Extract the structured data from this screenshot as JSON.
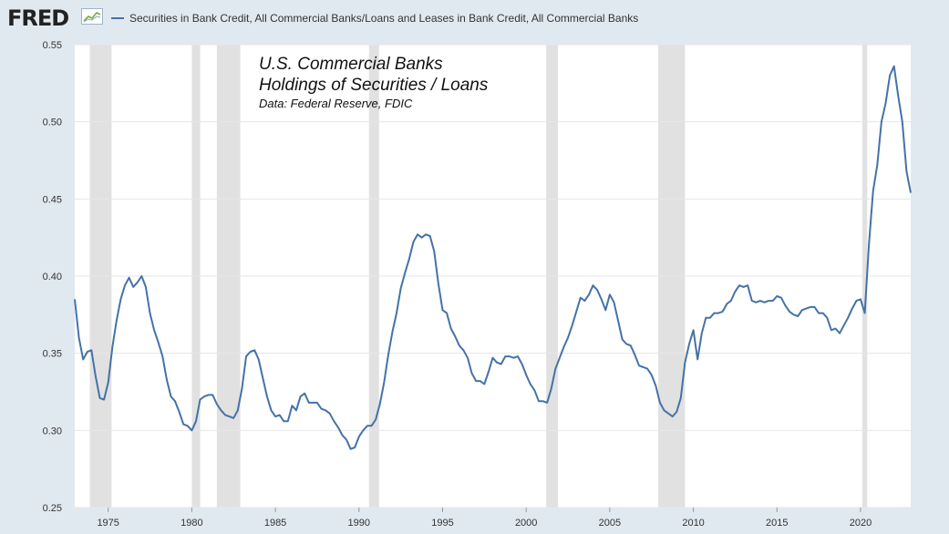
{
  "header": {
    "logo": "FRED",
    "logo_icon": "line-chart-icon"
  },
  "colors": {
    "background": "#e1e9f0",
    "plot_background": "#ffffff",
    "series": "#4572a7",
    "recession": "#e1e1e1",
    "grid": "#e6e6e6"
  },
  "chart_data": {
    "type": "line",
    "title": "",
    "xlabel": "",
    "ylabel": "",
    "grid": true,
    "legend_position": "top",
    "xlim": [
      1973.0,
      2023.0
    ],
    "ylim": [
      0.25,
      0.55
    ],
    "x_ticks": [
      1975,
      1980,
      1985,
      1990,
      1995,
      2000,
      2005,
      2010,
      2015,
      2020
    ],
    "x_tick_labels": [
      "1975",
      "1980",
      "1985",
      "1990",
      "1995",
      "2000",
      "2005",
      "2010",
      "2015",
      "2020"
    ],
    "y_ticks": [
      0.25,
      0.3,
      0.35,
      0.4,
      0.45,
      0.5,
      0.55
    ],
    "y_tick_labels": [
      "0.25",
      "0.30",
      "0.35",
      "0.40",
      "0.45",
      "0.50",
      "0.55"
    ],
    "annotation": {
      "line1": "U.S. Commercial Banks",
      "line2": "Holdings of Securities / Loans",
      "line3": "Data: Federal Reserve, FDIC"
    },
    "recessions": [
      [
        1973.9,
        1975.2
      ],
      [
        1980.0,
        1980.5
      ],
      [
        1981.5,
        1982.9
      ],
      [
        1990.6,
        1991.2
      ],
      [
        2001.2,
        2001.9
      ],
      [
        2007.9,
        2009.5
      ],
      [
        2020.1,
        2020.4
      ]
    ],
    "series": [
      {
        "name": "Securities in Bank Credit, All Commercial Banks/Loans and Leases in Bank Credit, All Commercial Banks",
        "x": [
          1973.0,
          1973.25,
          1973.5,
          1973.75,
          1974.0,
          1974.25,
          1974.5,
          1974.75,
          1975.0,
          1975.25,
          1975.5,
          1975.75,
          1976.0,
          1976.25,
          1976.5,
          1976.75,
          1977.0,
          1977.25,
          1977.5,
          1977.75,
          1978.0,
          1978.25,
          1978.5,
          1978.75,
          1979.0,
          1979.25,
          1979.5,
          1979.75,
          1980.0,
          1980.25,
          1980.5,
          1980.75,
          1981.0,
          1981.25,
          1981.5,
          1981.75,
          1982.0,
          1982.25,
          1982.5,
          1982.75,
          1983.0,
          1983.25,
          1983.5,
          1983.75,
          1984.0,
          1984.25,
          1984.5,
          1984.75,
          1985.0,
          1985.25,
          1985.5,
          1985.75,
          1986.0,
          1986.25,
          1986.5,
          1986.75,
          1987.0,
          1987.25,
          1987.5,
          1987.75,
          1988.0,
          1988.25,
          1988.5,
          1988.75,
          1989.0,
          1989.25,
          1989.5,
          1989.75,
          1990.0,
          1990.25,
          1990.5,
          1990.75,
          1991.0,
          1991.25,
          1991.5,
          1991.75,
          1992.0,
          1992.25,
          1992.5,
          1992.75,
          1993.0,
          1993.25,
          1993.5,
          1993.75,
          1994.0,
          1994.25,
          1994.5,
          1994.75,
          1995.0,
          1995.25,
          1995.5,
          1995.75,
          1996.0,
          1996.25,
          1996.5,
          1996.75,
          1997.0,
          1997.25,
          1997.5,
          1997.75,
          1998.0,
          1998.25,
          1998.5,
          1998.75,
          1999.0,
          1999.25,
          1999.5,
          1999.75,
          2000.0,
          2000.25,
          2000.5,
          2000.75,
          2001.0,
          2001.25,
          2001.5,
          2001.75,
          2002.0,
          2002.25,
          2002.5,
          2002.75,
          2003.0,
          2003.25,
          2003.5,
          2003.75,
          2004.0,
          2004.25,
          2004.5,
          2004.75,
          2005.0,
          2005.25,
          2005.5,
          2005.75,
          2006.0,
          2006.25,
          2006.5,
          2006.75,
          2007.0,
          2007.25,
          2007.5,
          2007.75,
          2008.0,
          2008.25,
          2008.5,
          2008.75,
          2009.0,
          2009.25,
          2009.5,
          2009.75,
          2010.0,
          2010.25,
          2010.5,
          2010.75,
          2011.0,
          2011.25,
          2011.5,
          2011.75,
          2012.0,
          2012.25,
          2012.5,
          2012.75,
          2013.0,
          2013.25,
          2013.5,
          2013.75,
          2014.0,
          2014.25,
          2014.5,
          2014.75,
          2015.0,
          2015.25,
          2015.5,
          2015.75,
          2016.0,
          2016.25,
          2016.5,
          2016.75,
          2017.0,
          2017.25,
          2017.5,
          2017.75,
          2018.0,
          2018.25,
          2018.5,
          2018.75,
          2019.0,
          2019.25,
          2019.5,
          2019.75,
          2020.0,
          2020.25,
          2020.5,
          2020.75,
          2021.0,
          2021.25,
          2021.5,
          2021.75,
          2022.0,
          2022.25,
          2022.5,
          2022.75,
          2023.0
        ],
        "values": [
          0.385,
          0.36,
          0.346,
          0.351,
          0.352,
          0.335,
          0.321,
          0.32,
          0.331,
          0.354,
          0.371,
          0.385,
          0.394,
          0.399,
          0.393,
          0.396,
          0.4,
          0.393,
          0.376,
          0.365,
          0.357,
          0.348,
          0.333,
          0.322,
          0.319,
          0.312,
          0.304,
          0.303,
          0.3,
          0.306,
          0.32,
          0.322,
          0.323,
          0.323,
          0.317,
          0.313,
          0.31,
          0.309,
          0.308,
          0.313,
          0.327,
          0.348,
          0.351,
          0.352,
          0.346,
          0.334,
          0.322,
          0.313,
          0.309,
          0.31,
          0.306,
          0.306,
          0.316,
          0.313,
          0.322,
          0.324,
          0.318,
          0.318,
          0.318,
          0.314,
          0.313,
          0.311,
          0.306,
          0.302,
          0.297,
          0.294,
          0.288,
          0.289,
          0.296,
          0.3,
          0.303,
          0.303,
          0.307,
          0.317,
          0.331,
          0.349,
          0.364,
          0.376,
          0.392,
          0.402,
          0.411,
          0.422,
          0.427,
          0.425,
          0.427,
          0.426,
          0.416,
          0.395,
          0.378,
          0.376,
          0.366,
          0.361,
          0.355,
          0.352,
          0.347,
          0.337,
          0.332,
          0.332,
          0.33,
          0.338,
          0.347,
          0.344,
          0.343,
          0.348,
          0.348,
          0.347,
          0.348,
          0.343,
          0.336,
          0.33,
          0.326,
          0.319,
          0.319,
          0.318,
          0.327,
          0.34,
          0.347,
          0.354,
          0.36,
          0.368,
          0.377,
          0.386,
          0.384,
          0.388,
          0.394,
          0.391,
          0.385,
          0.378,
          0.388,
          0.383,
          0.371,
          0.359,
          0.356,
          0.355,
          0.349,
          0.342,
          0.341,
          0.34,
          0.336,
          0.329,
          0.318,
          0.313,
          0.311,
          0.309,
          0.312,
          0.321,
          0.344,
          0.356,
          0.365,
          0.346,
          0.363,
          0.373,
          0.373,
          0.376,
          0.376,
          0.377,
          0.382,
          0.384,
          0.39,
          0.394,
          0.393,
          0.394,
          0.384,
          0.383,
          0.384,
          0.383,
          0.384,
          0.384,
          0.387,
          0.386,
          0.381,
          0.377,
          0.375,
          0.374,
          0.378,
          0.379,
          0.38,
          0.38,
          0.376,
          0.376,
          0.373,
          0.365,
          0.366,
          0.363,
          0.368,
          0.373,
          0.379,
          0.384,
          0.385,
          0.376,
          0.42,
          0.455,
          0.472,
          0.5,
          0.512,
          0.53,
          0.536,
          0.517,
          0.5,
          0.468,
          0.454
        ]
      }
    ]
  }
}
